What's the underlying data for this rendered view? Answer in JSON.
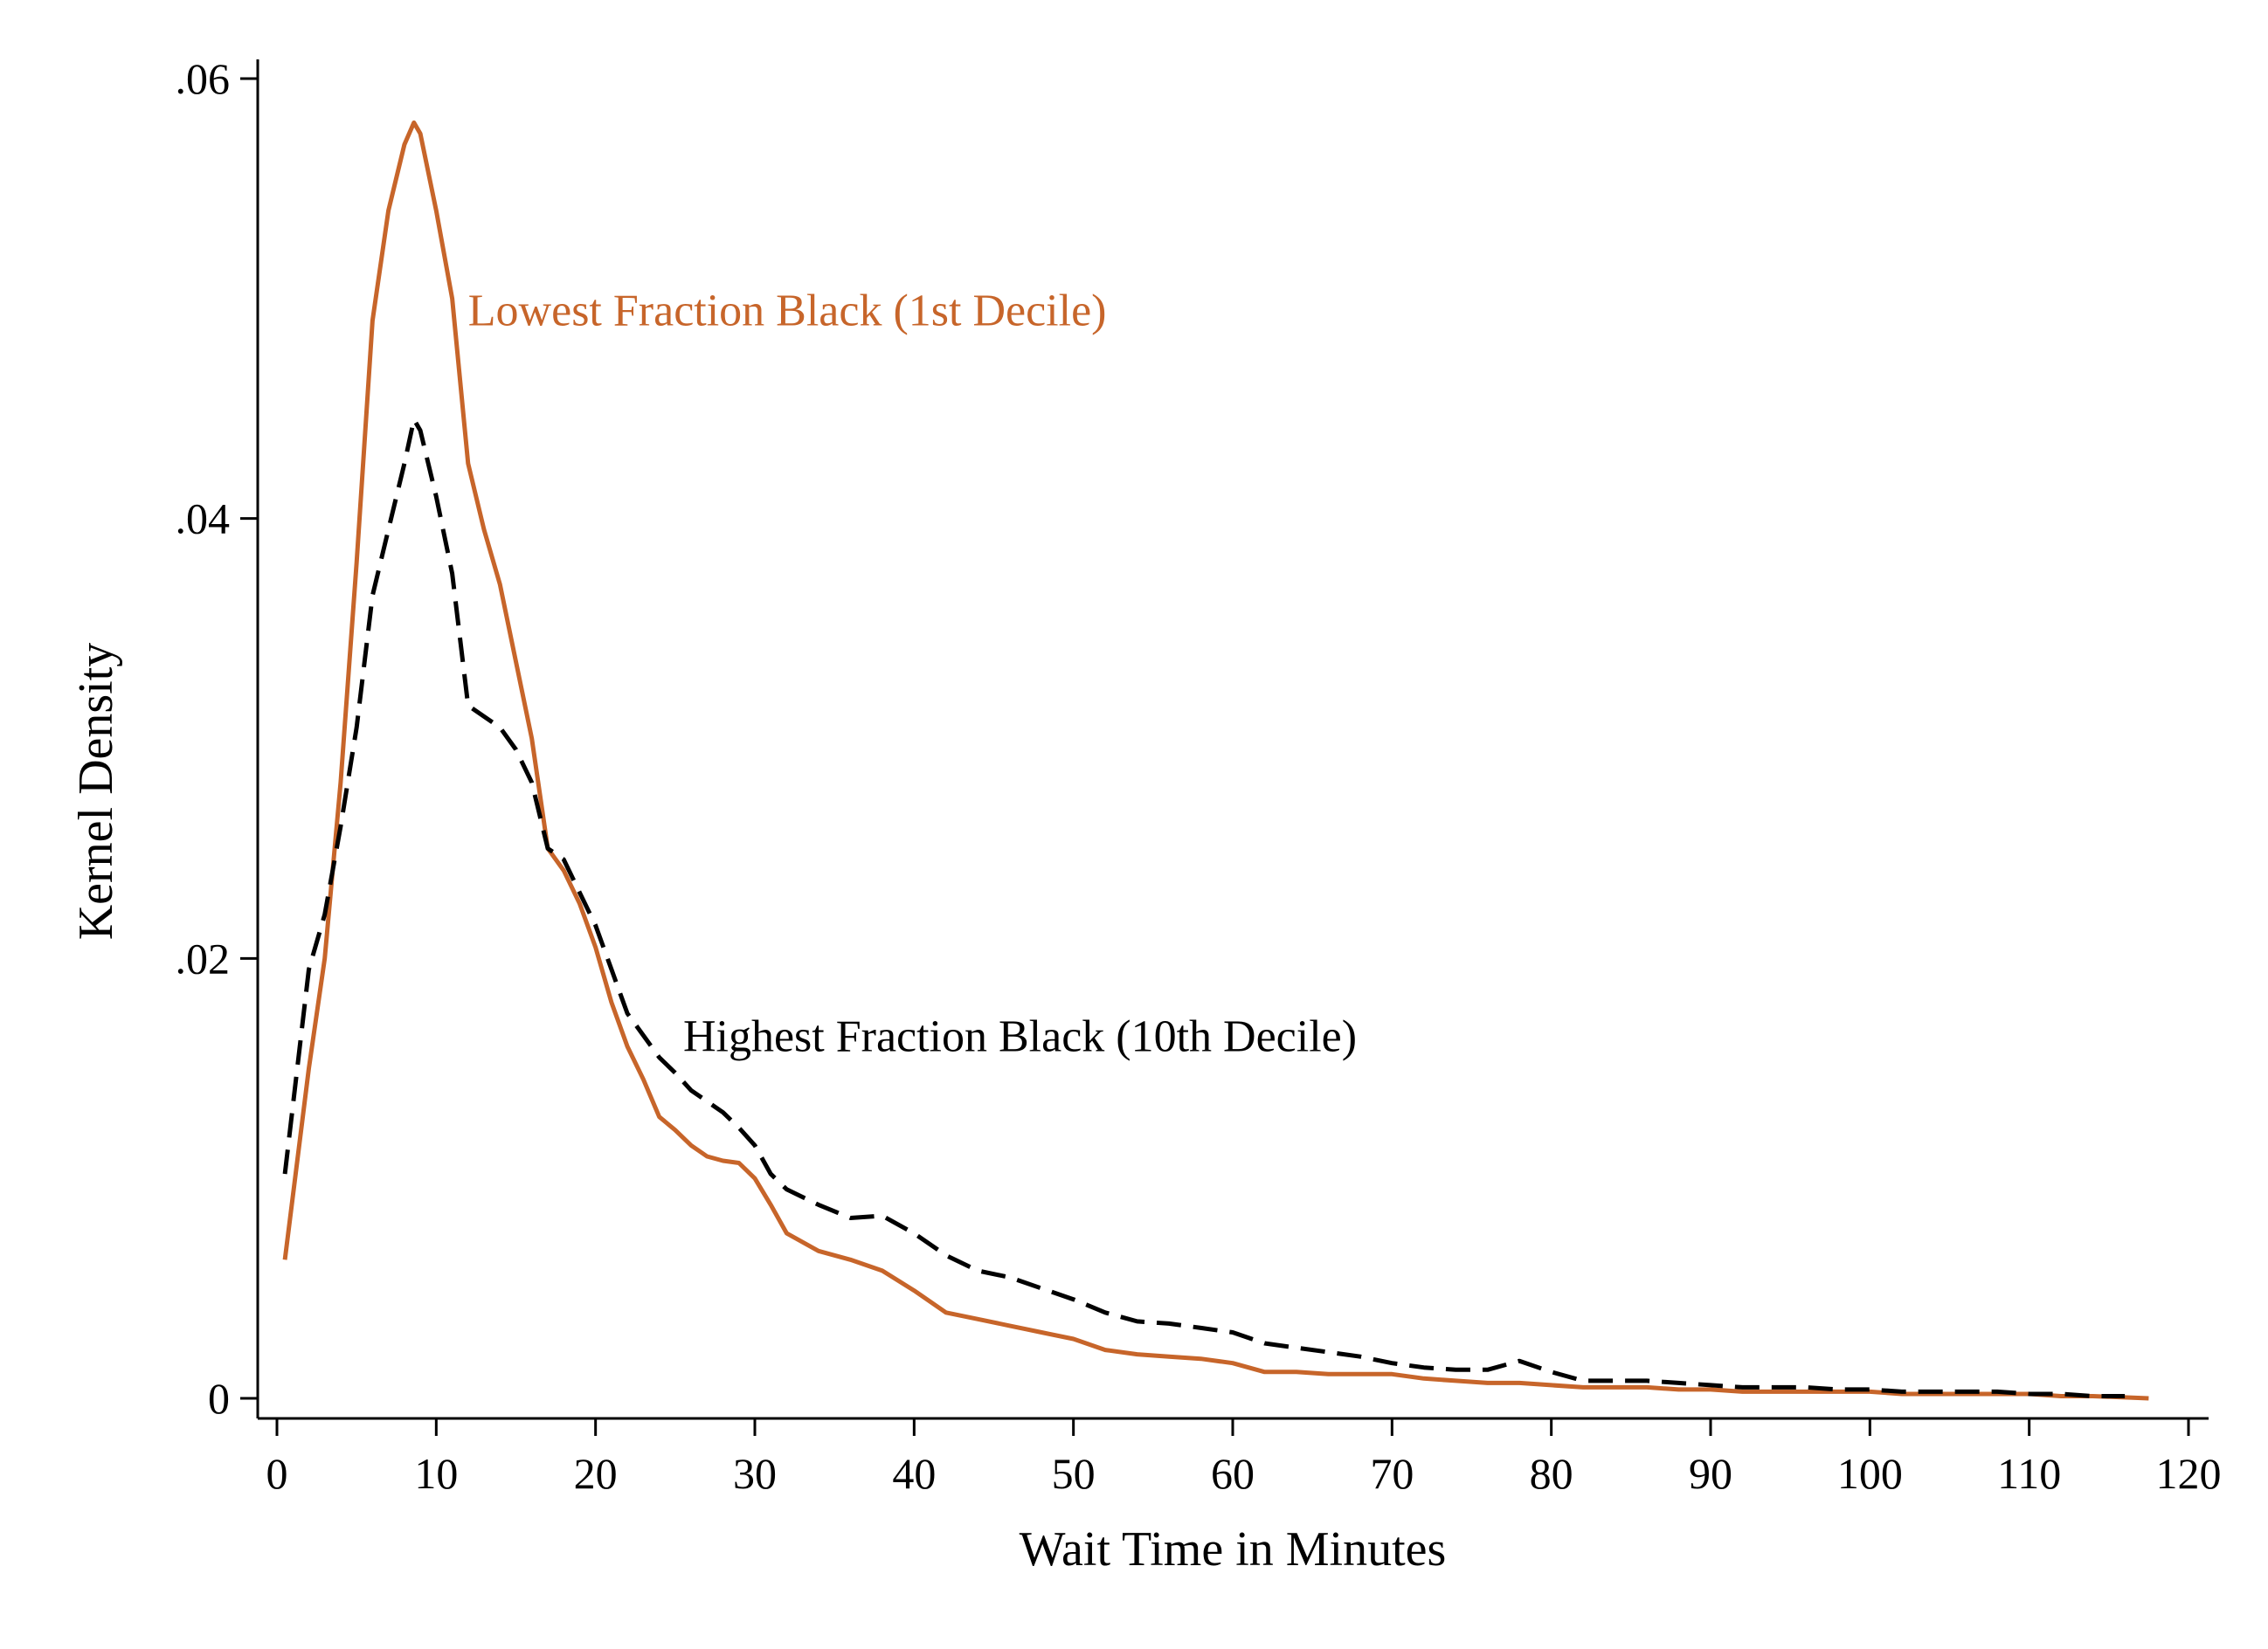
{
  "chart_data": {
    "type": "line",
    "title": "",
    "xlabel": "Wait Time in Minutes",
    "ylabel": "Kernel Density",
    "xlim": [
      -2,
      121
    ],
    "ylim": [
      -0.001,
      0.061
    ],
    "xticks": [
      0,
      10,
      20,
      30,
      40,
      50,
      60,
      70,
      80,
      90,
      100,
      110,
      120
    ],
    "xtick_labels": [
      "0",
      "10",
      "20",
      "30",
      "40",
      "50",
      "60",
      "70",
      "80",
      "90",
      "100",
      "110",
      "120"
    ],
    "yticks": [
      0,
      0.02,
      0.04,
      0.06
    ],
    "ytick_labels": [
      "0",
      ".02",
      ".04",
      ".06"
    ],
    "grid": false,
    "legend": "none",
    "series": [
      {
        "name": "Lowest Fraction Black (1st Decile)",
        "color": "#c7652a",
        "dash": "solid",
        "x": [
          0.5,
          2,
          3,
          4,
          5,
          6,
          7,
          8,
          8.6,
          9,
          10,
          11,
          12,
          13,
          14,
          15,
          16,
          17,
          18,
          19,
          20,
          21,
          22,
          23,
          24,
          25,
          26,
          27,
          28,
          29,
          30,
          31,
          32,
          34,
          36,
          38,
          40,
          42,
          44,
          46,
          48,
          50,
          52,
          54,
          56,
          58,
          60,
          62,
          64,
          66,
          68,
          70,
          72,
          74,
          76,
          78,
          80,
          82,
          84,
          86,
          88,
          90,
          92,
          94,
          96,
          98,
          100,
          102,
          104,
          106,
          108,
          110,
          112,
          114,
          117.5
        ],
        "y": [
          0.0063,
          0.015,
          0.02,
          0.028,
          0.038,
          0.049,
          0.054,
          0.057,
          0.058,
          0.0575,
          0.054,
          0.05,
          0.0425,
          0.0395,
          0.037,
          0.0335,
          0.03,
          0.025,
          0.024,
          0.0225,
          0.0205,
          0.018,
          0.016,
          0.0145,
          0.0128,
          0.0122,
          0.0115,
          0.011,
          0.0108,
          0.0107,
          0.01,
          0.0088,
          0.0075,
          0.0067,
          0.0063,
          0.0058,
          0.0049,
          0.0039,
          0.0036,
          0.0033,
          0.003,
          0.0027,
          0.0022,
          0.002,
          0.0019,
          0.0018,
          0.0016,
          0.0012,
          0.0012,
          0.0011,
          0.0011,
          0.0011,
          0.0009,
          0.0008,
          0.0007,
          0.0007,
          0.0006,
          0.0005,
          0.0005,
          0.0005,
          0.0004,
          0.0004,
          0.0003,
          0.0003,
          0.0003,
          0.0003,
          0.0003,
          0.0002,
          0.0002,
          0.0002,
          0.0002,
          0.0002,
          0.0001,
          0.0001,
          0.0
        ]
      },
      {
        "name": "Highest Fraction Black (10th Decile)",
        "color": "#000000",
        "dash": "dashed",
        "x": [
          0.5,
          2,
          3,
          4,
          5,
          6,
          7,
          8,
          8.6,
          9,
          10,
          11,
          12,
          13,
          14,
          15,
          16,
          17,
          18,
          19,
          20,
          21,
          22,
          23,
          24,
          25,
          26,
          27,
          28,
          29,
          30,
          31,
          32,
          34,
          36,
          38,
          40,
          42,
          44,
          46,
          48,
          50,
          52,
          54,
          56,
          58,
          60,
          62,
          64,
          66,
          68,
          70,
          72,
          74,
          76,
          78,
          80,
          82,
          84,
          86,
          88,
          90,
          92,
          94,
          96,
          98,
          100,
          102,
          104,
          106,
          108,
          110,
          112,
          114,
          116
        ],
        "y": [
          0.0102,
          0.0195,
          0.022,
          0.026,
          0.0305,
          0.0365,
          0.0395,
          0.0425,
          0.0445,
          0.044,
          0.041,
          0.0375,
          0.0315,
          0.031,
          0.0305,
          0.0295,
          0.028,
          0.025,
          0.0245,
          0.023,
          0.0215,
          0.0195,
          0.0175,
          0.0165,
          0.0155,
          0.0148,
          0.014,
          0.0135,
          0.013,
          0.0123,
          0.0115,
          0.0102,
          0.0095,
          0.0088,
          0.0082,
          0.0083,
          0.0075,
          0.0065,
          0.0058,
          0.0055,
          0.005,
          0.0045,
          0.0039,
          0.0035,
          0.0034,
          0.0032,
          0.003,
          0.0025,
          0.0023,
          0.0021,
          0.0019,
          0.0016,
          0.0014,
          0.0013,
          0.0013,
          0.0017,
          0.0012,
          0.0008,
          0.0008,
          0.0008,
          0.0007,
          0.0006,
          0.0005,
          0.0005,
          0.0005,
          0.0004,
          0.0004,
          0.0003,
          0.0003,
          0.0003,
          0.0003,
          0.0002,
          0.0002,
          0.0001,
          0.0001
        ]
      }
    ],
    "annotations": [
      {
        "text": "Lowest Fraction Black (1st Decile)",
        "x": 12,
        "y": 0.0495,
        "color": "#c7652a"
      },
      {
        "text": "Highest Fraction Black (10th Decile)",
        "x": 25.5,
        "y": 0.0165,
        "color": "#000000"
      }
    ]
  }
}
